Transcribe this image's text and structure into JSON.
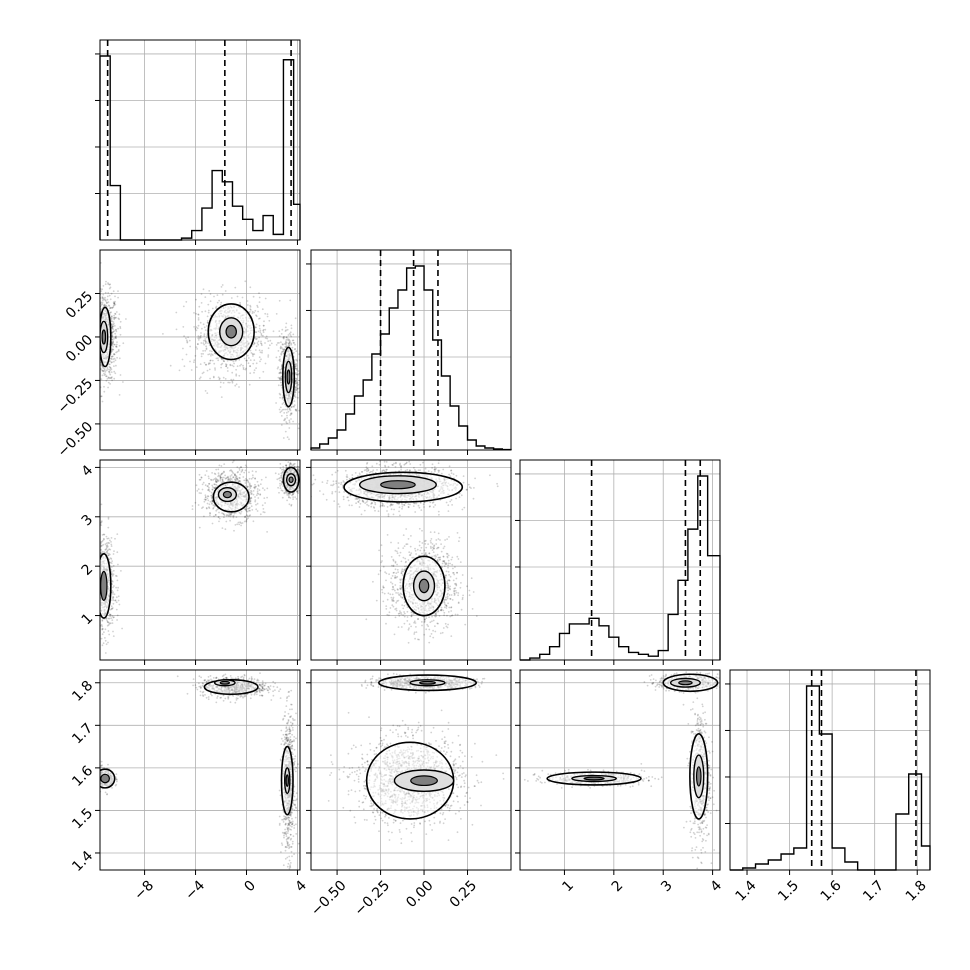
{
  "chart_data": {
    "type": "corner",
    "parameters": [
      {
        "range": [
          -11.5,
          4.2
        ],
        "ticks": [
          -8,
          -4,
          0,
          4
        ],
        "tick_labels": [
          "−8",
          "−4",
          "0",
          "4"
        ]
      },
      {
        "range": [
          -0.65,
          0.5
        ],
        "ticks": [
          -0.5,
          -0.25,
          0.0,
          0.25
        ],
        "tick_labels": [
          "−0.50",
          "−0.25",
          "0.00",
          "0.25"
        ]
      },
      {
        "range": [
          0.1,
          4.15
        ],
        "ticks": [
          1,
          2,
          3,
          4
        ],
        "tick_labels": [
          "1",
          "2",
          "3",
          "4"
        ]
      },
      {
        "range": [
          1.36,
          1.83
        ],
        "ticks": [
          1.4,
          1.5,
          1.6,
          1.7,
          1.8
        ],
        "tick_labels": [
          "1.4",
          "1.5",
          "1.6",
          "1.7",
          "1.8"
        ]
      }
    ],
    "histograms": [
      {
        "edges": [
          -11.5,
          -10.7,
          -9.9,
          -9.1,
          -8.3,
          -7.5,
          -6.7,
          -5.9,
          -5.1,
          -4.3,
          -3.5,
          -2.7,
          -1.9,
          -1.1,
          -0.3,
          0.5,
          1.3,
          2.1,
          2.9,
          3.7,
          4.2
        ],
        "counts": [
          0.98,
          0.29,
          0,
          0,
          0,
          0,
          0,
          0,
          0.01,
          0.05,
          0.17,
          0.37,
          0.31,
          0.18,
          0.11,
          0.05,
          0.13,
          0.03,
          0.96,
          0.19
        ],
        "quantiles": [
          -10.9,
          -1.7,
          3.5
        ]
      },
      {
        "edges": [
          -0.65,
          -0.6,
          -0.55,
          -0.5,
          -0.45,
          -0.4,
          -0.35,
          -0.3,
          -0.25,
          -0.2,
          -0.15,
          -0.1,
          -0.05,
          0.0,
          0.05,
          0.1,
          0.15,
          0.2,
          0.25,
          0.3,
          0.35,
          0.4,
          0.45,
          0.5
        ],
        "counts": [
          0.01,
          0.03,
          0.06,
          0.1,
          0.18,
          0.27,
          0.35,
          0.48,
          0.58,
          0.71,
          0.8,
          0.91,
          0.92,
          0.8,
          0.55,
          0.37,
          0.22,
          0.12,
          0.05,
          0.02,
          0.01,
          0.005,
          0.002
        ],
        "quantiles": [
          -0.25,
          -0.06,
          0.08
        ]
      },
      {
        "edges": [
          0.1,
          0.3,
          0.5,
          0.7,
          0.9,
          1.1,
          1.3,
          1.5,
          1.7,
          1.9,
          2.1,
          2.3,
          2.5,
          2.7,
          2.9,
          3.1,
          3.3,
          3.5,
          3.7,
          3.9,
          4.15
        ],
        "counts": [
          0,
          0.01,
          0.03,
          0.07,
          0.14,
          0.19,
          0.19,
          0.22,
          0.18,
          0.12,
          0.07,
          0.04,
          0.03,
          0.02,
          0.05,
          0.24,
          0.42,
          0.69,
          0.97,
          0.55
        ],
        "quantiles": [
          1.55,
          3.45,
          3.75
        ]
      },
      {
        "edges": [
          1.36,
          1.39,
          1.42,
          1.45,
          1.48,
          1.51,
          1.54,
          1.57,
          1.6,
          1.63,
          1.66,
          1.69,
          1.72,
          1.75,
          1.78,
          1.81,
          1.83
        ],
        "counts": [
          0,
          0.01,
          0.03,
          0.05,
          0.08,
          0.11,
          0.92,
          0.68,
          0.11,
          0.04,
          0,
          0,
          0,
          0.28,
          0.48,
          0.12
        ],
        "quantiles": [
          1.552,
          1.575,
          1.797
        ]
      }
    ],
    "modes": {
      "1_0": [
        {
          "c": [
            -11.2,
            0.0
          ],
          "s": [
            0.55,
            0.13
          ],
          "n": 900,
          "ctr": [
            [
              -11.1,
              0.0,
              0.45,
              0.17
            ],
            [
              -11.2,
              0.0,
              0.3,
              0.09
            ]
          ]
        },
        {
          "c": [
            -1.3,
            0.0
          ],
          "s": [
            1.4,
            0.11
          ],
          "n": 900,
          "ctr": [
            [
              -1.2,
              0.03,
              1.8,
              0.16
            ],
            [
              -1.2,
              0.03,
              0.9,
              0.08
            ]
          ]
        },
        {
          "c": [
            3.3,
            -0.22
          ],
          "s": [
            0.35,
            0.12
          ],
          "n": 700,
          "ctr": [
            [
              3.3,
              -0.23,
              0.45,
              0.17
            ],
            [
              3.3,
              -0.23,
              0.25,
              0.09
            ]
          ]
        }
      ],
      "2_0": [
        {
          "c": [
            -11.2,
            1.6
          ],
          "s": [
            0.45,
            0.5
          ],
          "n": 700,
          "ctr": [
            [
              -11.2,
              1.6,
              0.55,
              0.65
            ]
          ]
        },
        {
          "c": [
            -1.2,
            3.45
          ],
          "s": [
            1.1,
            0.25
          ],
          "n": 800,
          "ctr": [
            [
              -1.2,
              3.4,
              1.4,
              0.3
            ],
            [
              -1.5,
              3.45,
              0.7,
              0.14
            ]
          ]
        },
        {
          "c": [
            3.5,
            3.75
          ],
          "s": [
            0.4,
            0.15
          ],
          "n": 600,
          "ctr": [
            [
              3.5,
              3.75,
              0.6,
              0.25
            ],
            [
              3.5,
              3.75,
              0.35,
              0.12
            ]
          ]
        }
      ],
      "2_1": [
        {
          "c": [
            -0.15,
            3.6
          ],
          "s": [
            0.16,
            0.2
          ],
          "n": 1400,
          "ctr": [
            [
              -0.12,
              3.6,
              0.34,
              0.3
            ],
            [
              -0.15,
              3.65,
              0.22,
              0.18
            ]
          ]
        },
        {
          "c": [
            0.0,
            1.6
          ],
          "s": [
            0.1,
            0.45
          ],
          "n": 1000,
          "ctr": [
            [
              0.0,
              1.6,
              0.12,
              0.6
            ],
            [
              0.0,
              1.6,
              0.06,
              0.3
            ]
          ]
        }
      ],
      "3_0": [
        {
          "c": [
            -1.0,
            1.79
          ],
          "s": [
            1.3,
            0.012
          ],
          "n": 700,
          "ctr": [
            [
              -1.2,
              1.79,
              2.1,
              0.017
            ],
            [
              -1.7,
              1.8,
              0.8,
              0.007
            ]
          ]
        },
        {
          "c": [
            -11.2,
            1.575
          ],
          "s": [
            0.4,
            0.012
          ],
          "n": 400,
          "ctr": [
            [
              -11.1,
              1.575,
              0.75,
              0.022
            ]
          ]
        },
        {
          "c": [
            3.3,
            1.56
          ],
          "s": [
            0.25,
            0.08
          ],
          "n": 700,
          "ctr": [
            [
              3.2,
              1.57,
              0.45,
              0.08
            ],
            [
              3.2,
              1.57,
              0.2,
              0.03
            ]
          ]
        }
      ],
      "3_1": [
        {
          "c": [
            0.0,
            1.8
          ],
          "s": [
            0.14,
            0.007
          ],
          "n": 900,
          "ctr": [
            [
              0.02,
              1.8,
              0.28,
              0.018
            ],
            [
              0.02,
              1.8,
              0.1,
              0.007
            ]
          ]
        },
        {
          "c": [
            -0.08,
            1.57
          ],
          "s": [
            0.15,
            0.05
          ],
          "n": 1400,
          "ctr": [
            [
              -0.08,
              1.57,
              0.25,
              0.09
            ],
            [
              0.0,
              1.57,
              0.17,
              0.025
            ]
          ]
        }
      ],
      "3_2": [
        {
          "c": [
            1.6,
            1.575
          ],
          "s": [
            0.5,
            0.008
          ],
          "n": 500,
          "ctr": [
            [
              1.6,
              1.575,
              0.95,
              0.015
            ],
            [
              1.6,
              1.575,
              0.45,
              0.007
            ]
          ]
        },
        {
          "c": [
            3.5,
            1.8
          ],
          "s": [
            0.3,
            0.01
          ],
          "n": 500,
          "ctr": [
            [
              3.55,
              1.8,
              0.55,
              0.02
            ],
            [
              3.45,
              1.8,
              0.3,
              0.01
            ]
          ]
        },
        {
          "c": [
            3.75,
            1.58
          ],
          "s": [
            0.1,
            0.08
          ],
          "n": 600,
          "ctr": [
            [
              3.72,
              1.58,
              0.18,
              0.1
            ],
            [
              3.72,
              1.58,
              0.1,
              0.05
            ]
          ]
        }
      ]
    }
  }
}
